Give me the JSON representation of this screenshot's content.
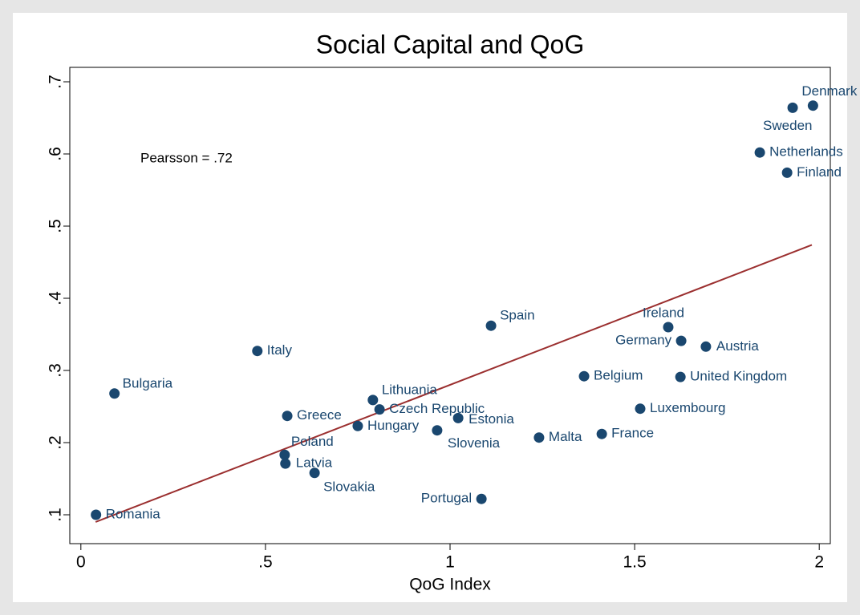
{
  "chart_data": {
    "type": "scatter",
    "title": "Social Capital and QoG",
    "xlabel": "QoG Index",
    "annotation": "Pearsson = .72",
    "color": "#1a476f",
    "point_labels": [
      "Denmark",
      "Sweden",
      "Netherlands",
      "Finland",
      "Spain",
      "Ireland",
      "Germany",
      "Austria",
      "Belgium",
      "United Kingdom",
      "Luxembourg",
      "France",
      "Malta",
      "Portugal",
      "Slovenia",
      "Estonia",
      "Czech Republic",
      "Lithuania",
      "Hungary",
      "Greece",
      "Poland",
      "Latvia",
      "Slovakia",
      "Italy",
      "Bulgaria",
      "Romania"
    ],
    "x": [
      1.983,
      1.928,
      1.839,
      1.913,
      1.111,
      1.591,
      1.626,
      1.693,
      1.363,
      1.624,
      1.515,
      1.411,
      1.241,
      1.085,
      0.965,
      1.022,
      0.809,
      0.791,
      0.75,
      0.559,
      0.552,
      0.554,
      0.633,
      0.478,
      0.091,
      0.041
    ],
    "values": [
      0.667,
      0.664,
      0.602,
      0.574,
      0.362,
      0.36,
      0.341,
      0.333,
      0.292,
      0.291,
      0.247,
      0.212,
      0.207,
      0.122,
      0.217,
      0.234,
      0.246,
      0.259,
      0.223,
      0.237,
      0.183,
      0.171,
      0.158,
      0.327,
      0.268,
      0.1
    ],
    "fit_line": {
      "color": "#9b2f2f",
      "x": [
        0.04,
        1.98
      ],
      "values": [
        0.09,
        0.474
      ]
    },
    "xlim": [
      -0.03,
      2.03
    ],
    "xticks": [
      0,
      {
        "value": 0.5,
        "label": ".5"
      },
      1,
      {
        "value": 1.5,
        "label": "1.5"
      },
      2
    ],
    "ylim": [
      0.06,
      0.72
    ],
    "yticks": [
      {
        "value": 0.1,
        "label": ".1"
      },
      {
        "value": 0.2,
        "label": ".2"
      },
      {
        "value": 0.3,
        "label": ".3"
      },
      {
        "value": 0.4,
        "label": ".4"
      },
      {
        "value": 0.5,
        "label": ".5"
      },
      {
        "value": 0.6,
        "label": ".6"
      },
      {
        "value": 0.7,
        "label": ".7"
      }
    ],
    "grid": false
  }
}
